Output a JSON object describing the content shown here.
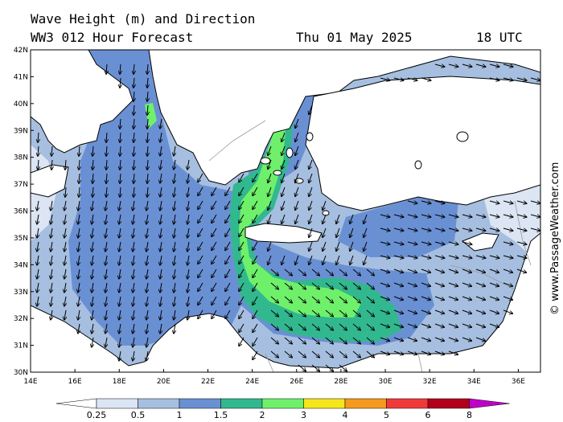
{
  "title": {
    "line1": "Wave Height (m) and Direction",
    "model": "WW3 012 Hour Forecast",
    "date": "Thu 01 May 2025",
    "time": "18 UTC"
  },
  "credit": "© www.PassageWeather.com",
  "axes": {
    "lat_labels": [
      "42N",
      "41N",
      "40N",
      "39N",
      "38N",
      "37N",
      "36N",
      "35N",
      "34N",
      "33N",
      "32N",
      "31N",
      "30N"
    ],
    "lon_labels": [
      "14E",
      "16E",
      "18E",
      "20E",
      "22E",
      "24E",
      "26E",
      "28E",
      "30E",
      "32E",
      "34E",
      "36E"
    ]
  },
  "legend": {
    "labels": [
      "0.25",
      "0.5",
      "1",
      "1.5",
      "2",
      "3",
      "4",
      "5",
      "6",
      "8"
    ],
    "colors": [
      "#ffffff",
      "#dbe5f3",
      "#a6bfe0",
      "#6a90d4",
      "#32b88e",
      "#6ff06b",
      "#f5e61c",
      "#f59a1e",
      "#f03a3a",
      "#b0001c",
      "#c000c8"
    ]
  },
  "colors": {
    "land": "#ffffff",
    "sea_low": "#dbe5f3",
    "sea_mid": "#a6bfe0",
    "sea_high": "#6a90d4",
    "wave_2": "#32b88e",
    "wave_3": "#6ff06b",
    "coast": "#000000",
    "border": "#9a9a9a"
  },
  "arrow_direction_note": "arrows",
  "map": {
    "region": "Eastern Mediterranean",
    "lon_range": [
      14,
      37
    ],
    "lat_range": [
      30,
      42
    ]
  }
}
